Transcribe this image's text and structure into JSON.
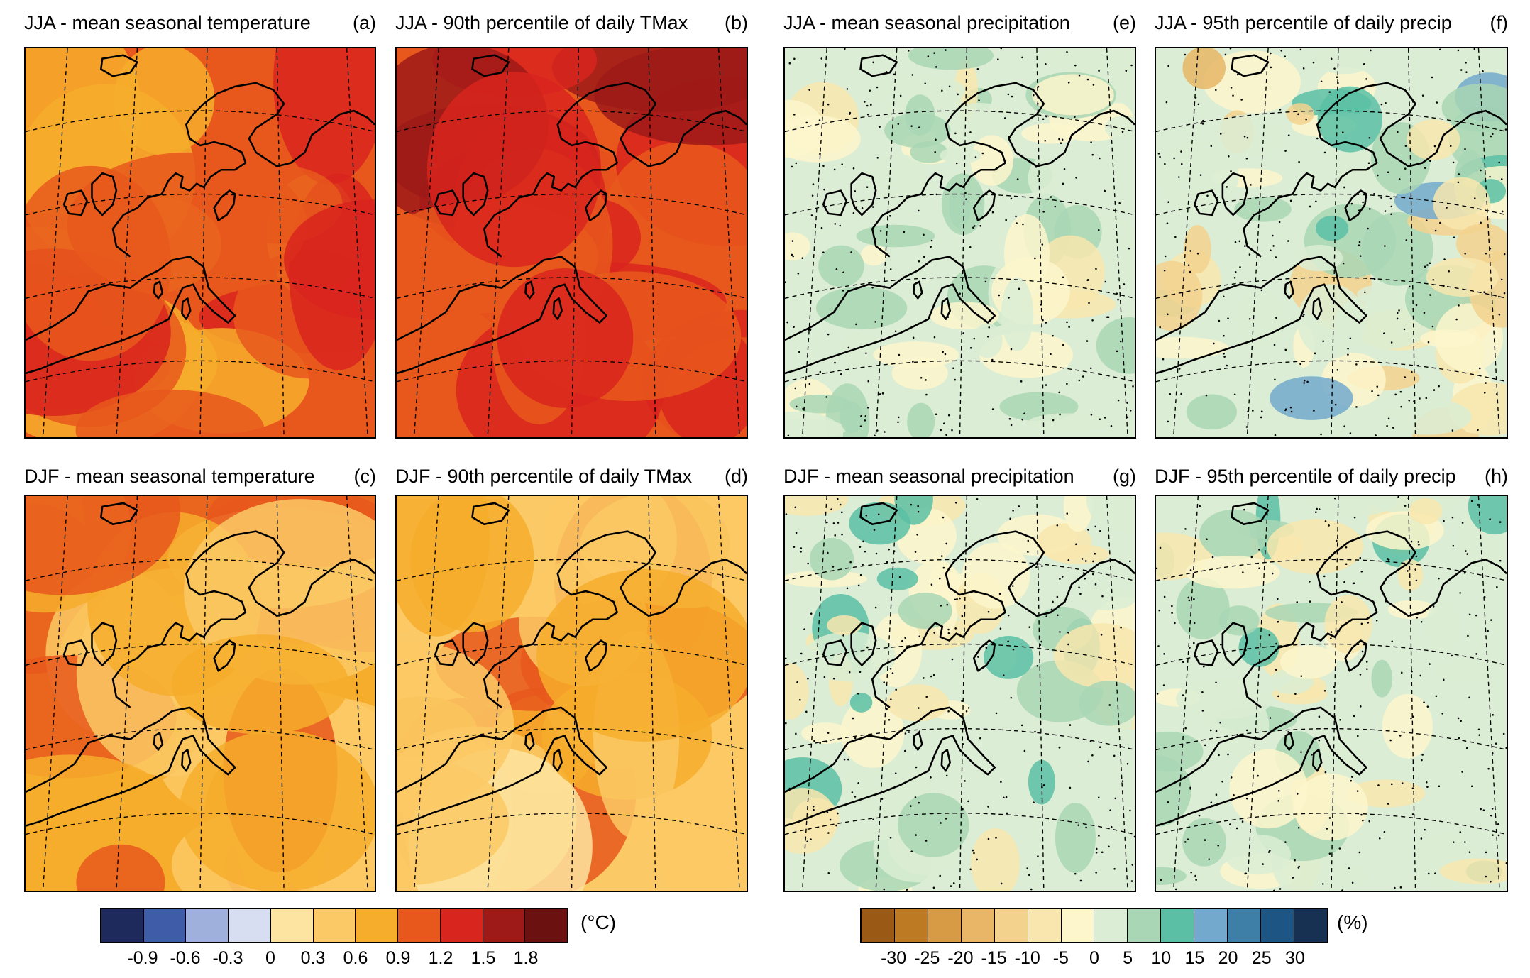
{
  "panels": [
    {
      "title": "JJA - mean seasonal temperature",
      "letter": "(a)",
      "scheme": "temp",
      "level": 2.6
    },
    {
      "title": "JJA - 90th percentile of daily TMax",
      "letter": "(b)",
      "scheme": "temp",
      "level": 3.4
    },
    {
      "title": "JJA - mean seasonal precipitation",
      "letter": "(e)",
      "scheme": "precip",
      "level": 0.2
    },
    {
      "title": "JJA - 95th percentile of daily precip",
      "letter": "(f)",
      "scheme": "precip",
      "level": 0.9
    },
    {
      "title": "DJF - mean seasonal temperature",
      "letter": "(c)",
      "scheme": "temp",
      "level": 1.8
    },
    {
      "title": "DJF - 90th percentile of daily TMax",
      "letter": "(d)",
      "scheme": "temp",
      "level": 1.4
    },
    {
      "title": "DJF - mean seasonal precipitation",
      "letter": "(g)",
      "scheme": "precip",
      "level": 0.5
    },
    {
      "title": "DJF - 95th percentile of daily precip",
      "letter": "(h)",
      "scheme": "precip",
      "level": 0.4
    }
  ],
  "temperature_colorbar": {
    "unit": "(°C)",
    "ticks": [
      "-0.9",
      "-0.6",
      "-0.3",
      "0",
      "0.3",
      "0.6",
      "0.9",
      "1.2",
      "1.5",
      "1.8"
    ],
    "colors": [
      "#1f2a5c",
      "#3f5ca8",
      "#9fb0dc",
      "#d8def2",
      "#fde4a0",
      "#fbc965",
      "#f6ad2c",
      "#e8581c",
      "#d8251d",
      "#9e1a18",
      "#6b1210"
    ]
  },
  "precipitation_colorbar": {
    "unit": "(%)",
    "ticks": [
      "-30",
      "-25",
      "-20",
      "-15",
      "-10",
      "-5",
      "0",
      "5",
      "10",
      "15",
      "20",
      "25",
      "30"
    ],
    "colors": [
      "#9a5a16",
      "#bd7a22",
      "#d79a45",
      "#e8b666",
      "#f3d28e",
      "#f8e6ae",
      "#fdf6cc",
      "#dbedd4",
      "#a9d6b4",
      "#5bbfa5",
      "#72a9cc",
      "#3e7fa7",
      "#1d5584",
      "#173152"
    ]
  }
}
